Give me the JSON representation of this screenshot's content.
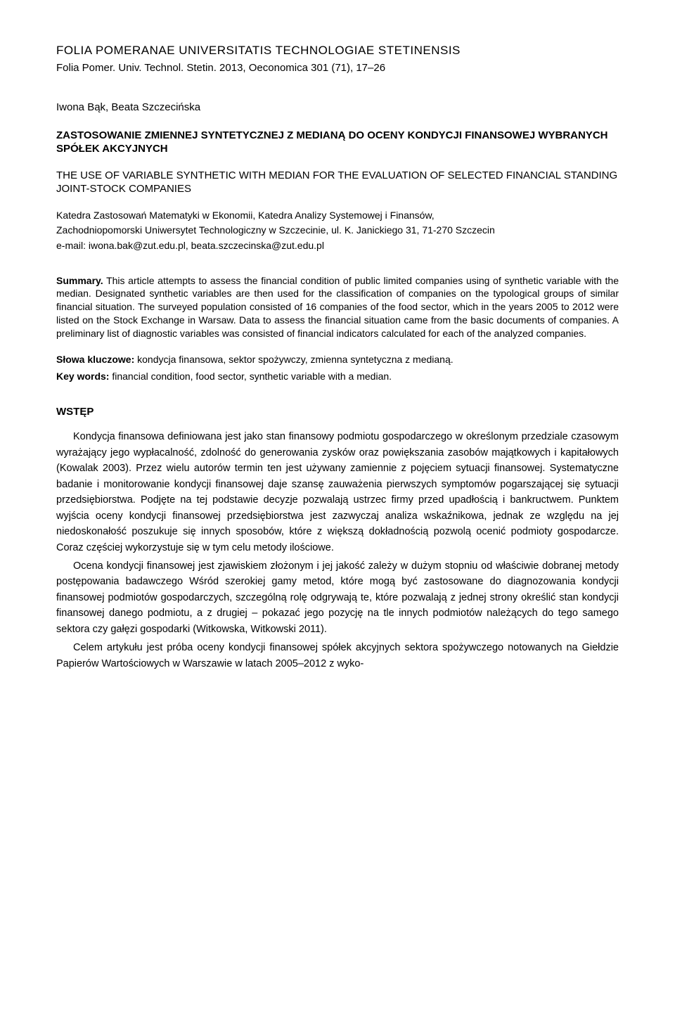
{
  "header": {
    "line1": "FOLIA POMERANAE UNIVERSITATIS TECHNOLOGIAE STETINENSIS",
    "line2": "Folia Pomer. Univ. Technol. Stetin. 2013, Oeconomica 301 (71), 17–26"
  },
  "authors": "Iwona Bąk, Beata Szczecińska",
  "title_pl": "ZASTOSOWANIE ZMIENNEJ SYNTETYCZNEJ Z MEDIANĄ DO OCENY KONDYCJI FINANSOWEJ WYBRANYCH SPÓŁEK AKCYJNYCH",
  "title_en": "THE USE OF VARIABLE SYNTHETIC WITH MEDIAN FOR THE EVALUATION OF SELECTED FINANCIAL STANDING JOINT-STOCK COMPANIES",
  "affiliation": "Katedra Zastosowań Matematyki w Ekonomii, Katedra Analizy Systemowej i Finansów,",
  "address": "Zachodniopomorski Uniwersytet Technologiczny w Szczecinie, ul. K. Janickiego 31, 71-270 Szczecin",
  "email": "e-mail: iwona.bak@zut.edu.pl, beata.szczecinska@zut.edu.pl",
  "summary": {
    "label": "Summary.",
    "text": " This article attempts to assess the financial condition of public limited companies using of synthetic variable with the median. Designated synthetic variables are then used for the classification of companies on the typological groups of similar financial situation. The surveyed population consisted of 16 companies of the food sector, which in the years 2005 to 2012 were listed on the Stock Exchange in Warsaw. Data to assess the financial situation came from the basic documents of companies. A preliminary list of diagnostic variables was consisted of financial indicators calculated for each of the analyzed companies."
  },
  "keywords_pl": {
    "label": "Słowa kluczowe:",
    "text": " kondycja finansowa, sektor spożywczy, zmienna syntetyczna z medianą."
  },
  "keywords_en": {
    "label": "Key words:",
    "text": " financial condition, food sector, synthetic variable with a median."
  },
  "section_heading": "WSTĘP",
  "body": {
    "p1": "Kondycja finansowa definiowana jest jako stan finansowy podmiotu gospodarczego w określonym przedziale czasowym wyrażający jego wypłacalność, zdolność do generowania zysków oraz powiększania zasobów majątkowych i kapitałowych (Kowalak 2003). Przez wielu autorów termin ten jest używany zamiennie z pojęciem sytuacji finansowej. Systematyczne badanie i monitorowanie kondycji finansowej daje szansę zauważenia pierwszych symptomów pogarszającej się sytuacji przedsiębiorstwa. Podjęte na tej podstawie decyzje pozwalają ustrzec firmy przed upadłością i bankructwem. Punktem wyjścia oceny kondycji finansowej przedsiębiorstwa jest zazwyczaj analiza wskaźnikowa, jednak ze względu na jej niedoskonałość poszukuje się innych sposobów, które z większą dokładnością pozwolą ocenić podmioty gospodarcze. Coraz częściej wykorzystuje się w tym celu metody ilościowe.",
    "p2": "Ocena kondycji finansowej jest zjawiskiem złożonym i jej jakość zależy w dużym stopniu od właściwie dobranej metody postępowania badawczego Wśród szerokiej gamy metod, które mogą być zastosowane do diagnozowania kondycji finansowej podmiotów gospodarczych, szczególną rolę odgrywają te, które pozwalają z jednej strony określić stan kondycji finansowej danego podmiotu, a z drugiej – pokazać jego pozycję na tle innych podmiotów należących do tego samego sektora czy gałęzi gospodarki (Witkowska, Witkowski 2011).",
    "p3": "Celem artykułu jest próba oceny kondycji finansowej spółek akcyjnych sektora spożywczego notowanych na Giełdzie Papierów Wartościowych w Warszawie w latach 2005–2012 z wyko-"
  }
}
